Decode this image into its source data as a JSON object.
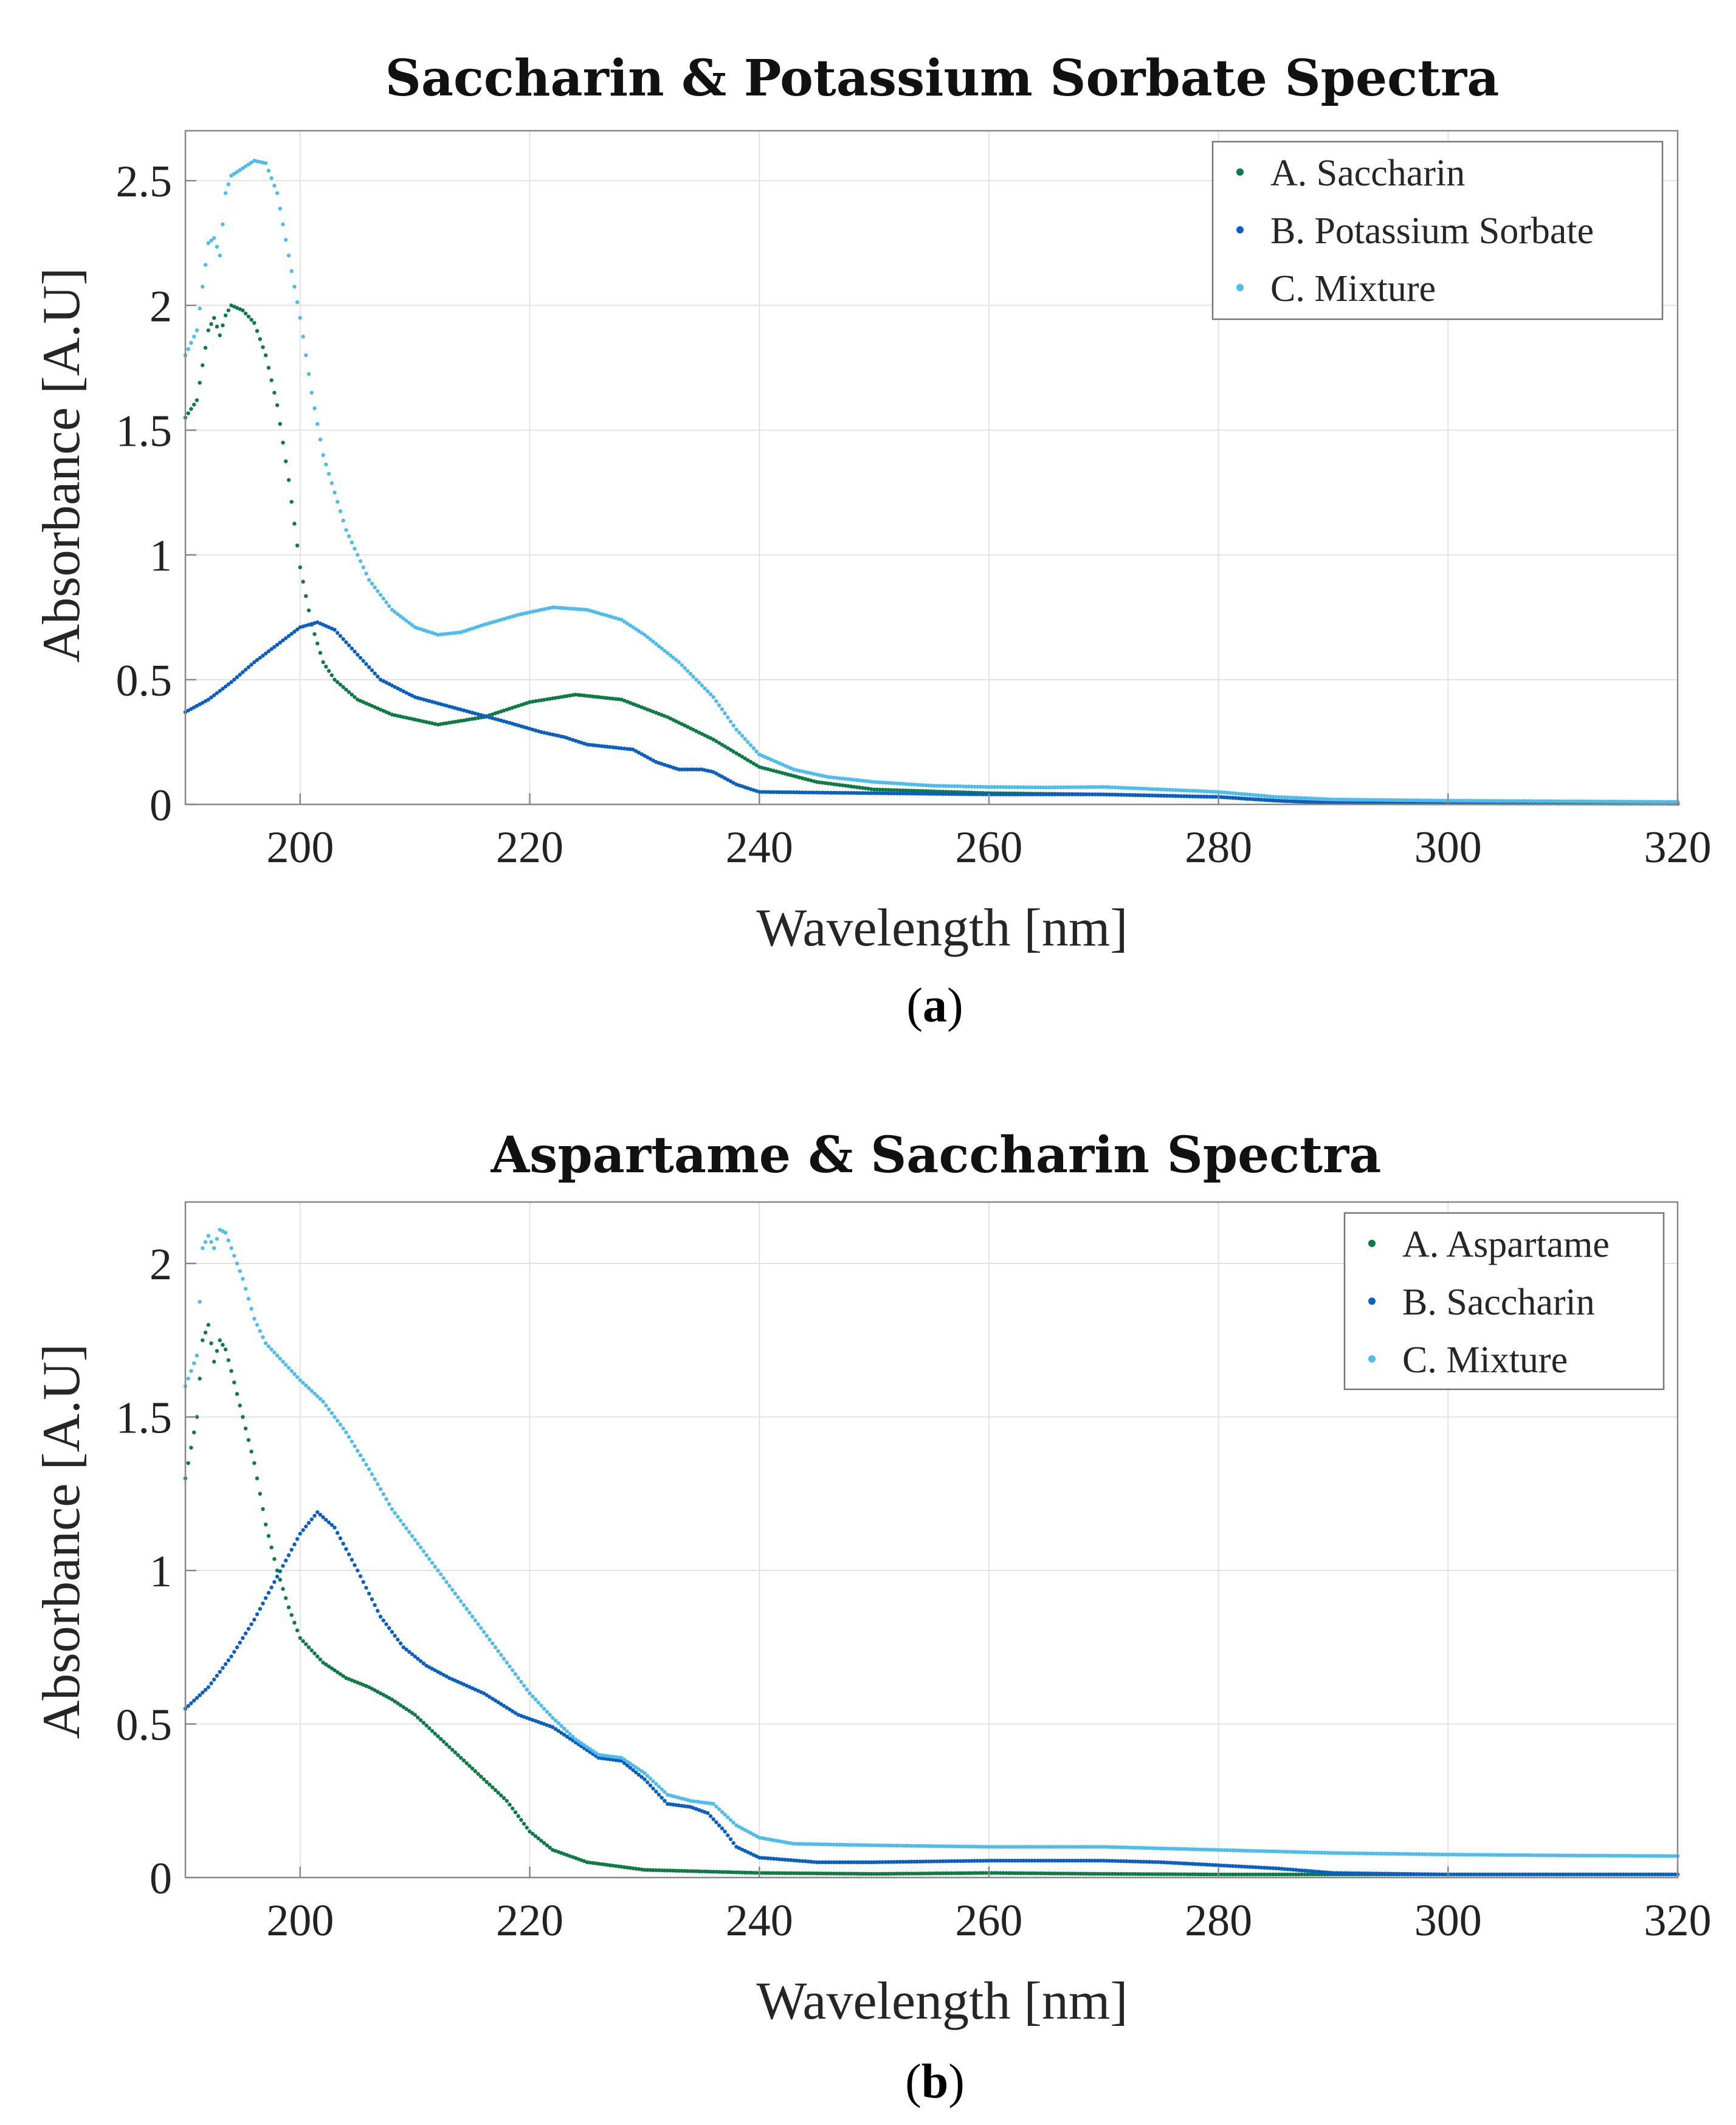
{
  "colors": {
    "green": "#0f7a45",
    "blue": "#0b5fc0",
    "lightblue": "#4fbcec",
    "grid": "#e3e3e3",
    "axis": "#888888"
  },
  "chart_data": [
    {
      "type": "scatter",
      "title": "Saccharin & Potassium Sorbate Spectra",
      "xlabel": "Wavelength [nm]",
      "ylabel": "Absorbance [A.U]",
      "xlim": [
        190,
        320
      ],
      "ylim": [
        0,
        2.7
      ],
      "xticks": [
        200,
        220,
        240,
        260,
        280,
        300,
        320
      ],
      "xtick_labels": [
        "200",
        "220",
        "240",
        "260",
        "280",
        "300",
        "320"
      ],
      "yticks": [
        0,
        0.5,
        1,
        1.5,
        2,
        2.5
      ],
      "ytick_labels": [
        "0",
        "0.5",
        "1",
        "1.5",
        "2",
        "2.5"
      ],
      "grid": true,
      "legend_position": "top-right",
      "caption_letter": "a",
      "series": [
        {
          "name": "A. Saccharin",
          "color_key": "green",
          "points": [
            [
              190,
              1.55
            ],
            [
              191,
              1.62
            ],
            [
              192,
              1.9
            ],
            [
              192.5,
              1.95
            ],
            [
              193,
              1.88
            ],
            [
              193.5,
              1.96
            ],
            [
              194,
              2.0
            ],
            [
              195,
              1.98
            ],
            [
              196,
              1.93
            ],
            [
              197,
              1.8
            ],
            [
              198,
              1.6
            ],
            [
              199,
              1.3
            ],
            [
              200,
              0.95
            ],
            [
              201,
              0.72
            ],
            [
              202,
              0.57
            ],
            [
              203,
              0.5
            ],
            [
              205,
              0.42
            ],
            [
              208,
              0.36
            ],
            [
              212,
              0.32
            ],
            [
              216,
              0.35
            ],
            [
              220,
              0.41
            ],
            [
              224,
              0.44
            ],
            [
              228,
              0.42
            ],
            [
              232,
              0.35
            ],
            [
              236,
              0.26
            ],
            [
              240,
              0.15
            ],
            [
              245,
              0.09
            ],
            [
              250,
              0.06
            ],
            [
              260,
              0.045
            ],
            [
              270,
              0.04
            ],
            [
              280,
              0.03
            ],
            [
              285,
              0.015
            ],
            [
              290,
              0.005
            ],
            [
              300,
              0.004
            ],
            [
              320,
              0.003
            ]
          ]
        },
        {
          "name": "B. Potassium Sorbate",
          "color_key": "blue",
          "points": [
            [
              190,
              0.37
            ],
            [
              192,
              0.42
            ],
            [
              194,
              0.49
            ],
            [
              196,
              0.57
            ],
            [
              198,
              0.64
            ],
            [
              200,
              0.71
            ],
            [
              201.5,
              0.73
            ],
            [
              203,
              0.7
            ],
            [
              205,
              0.6
            ],
            [
              207,
              0.5
            ],
            [
              210,
              0.43
            ],
            [
              214,
              0.38
            ],
            [
              218,
              0.33
            ],
            [
              221,
              0.29
            ],
            [
              223,
              0.27
            ],
            [
              225,
              0.24
            ],
            [
              227,
              0.23
            ],
            [
              229,
              0.22
            ],
            [
              231,
              0.17
            ],
            [
              233,
              0.14
            ],
            [
              235,
              0.14
            ],
            [
              236,
              0.13
            ],
            [
              238,
              0.08
            ],
            [
              240,
              0.05
            ],
            [
              250,
              0.045
            ],
            [
              260,
              0.04
            ],
            [
              270,
              0.04
            ],
            [
              280,
              0.03
            ],
            [
              285,
              0.015
            ],
            [
              290,
              0.007
            ],
            [
              300,
              0.005
            ],
            [
              320,
              0.004
            ]
          ]
        },
        {
          "name": "C. Mixture",
          "color_key": "lightblue",
          "points": [
            [
              190,
              1.8
            ],
            [
              191,
              1.9
            ],
            [
              192,
              2.25
            ],
            [
              192.5,
              2.27
            ],
            [
              193,
              2.2
            ],
            [
              193.5,
              2.45
            ],
            [
              194,
              2.52
            ],
            [
              195,
              2.55
            ],
            [
              196,
              2.58
            ],
            [
              197,
              2.57
            ],
            [
              198,
              2.45
            ],
            [
              199,
              2.2
            ],
            [
              200,
              1.95
            ],
            [
              201,
              1.65
            ],
            [
              202,
              1.4
            ],
            [
              204,
              1.1
            ],
            [
              206,
              0.9
            ],
            [
              208,
              0.78
            ],
            [
              210,
              0.71
            ],
            [
              212,
              0.68
            ],
            [
              214,
              0.69
            ],
            [
              216,
              0.72
            ],
            [
              219,
              0.76
            ],
            [
              222,
              0.79
            ],
            [
              225,
              0.78
            ],
            [
              228,
              0.74
            ],
            [
              230,
              0.68
            ],
            [
              233,
              0.57
            ],
            [
              236,
              0.43
            ],
            [
              238,
              0.3
            ],
            [
              240,
              0.2
            ],
            [
              243,
              0.14
            ],
            [
              246,
              0.11
            ],
            [
              250,
              0.09
            ],
            [
              255,
              0.075
            ],
            [
              260,
              0.07
            ],
            [
              265,
              0.068
            ],
            [
              270,
              0.07
            ],
            [
              275,
              0.06
            ],
            [
              280,
              0.05
            ],
            [
              285,
              0.03
            ],
            [
              290,
              0.02
            ],
            [
              300,
              0.015
            ],
            [
              320,
              0.01
            ]
          ]
        }
      ]
    },
    {
      "type": "scatter",
      "title": "Aspartame & Saccharin Spectra",
      "xlabel": "Wavelength [nm]",
      "ylabel": "Absorbance [A.U]",
      "xlim": [
        190,
        320
      ],
      "ylim": [
        0,
        2.2
      ],
      "xticks": [
        200,
        220,
        240,
        260,
        280,
        300,
        320
      ],
      "xtick_labels": [
        "200",
        "220",
        "240",
        "260",
        "280",
        "300",
        "320"
      ],
      "yticks": [
        0,
        0.5,
        1,
        1.5,
        2
      ],
      "ytick_labels": [
        "0",
        "0.5",
        "1",
        "1.5",
        "2"
      ],
      "grid": true,
      "legend_position": "top-right",
      "caption_letter": "b",
      "series": [
        {
          "name": "A. Aspartame",
          "color_key": "green",
          "points": [
            [
              190,
              1.3
            ],
            [
              191,
              1.5
            ],
            [
              191.5,
              1.75
            ],
            [
              192,
              1.8
            ],
            [
              192.5,
              1.68
            ],
            [
              193,
              1.75
            ],
            [
              193.5,
              1.72
            ],
            [
              194,
              1.65
            ],
            [
              195,
              1.5
            ],
            [
              196,
              1.35
            ],
            [
              197,
              1.15
            ],
            [
              198,
              1.0
            ],
            [
              199,
              0.88
            ],
            [
              200,
              0.78
            ],
            [
              202,
              0.7
            ],
            [
              204,
              0.65
            ],
            [
              206,
              0.62
            ],
            [
              208,
              0.58
            ],
            [
              210,
              0.53
            ],
            [
              212,
              0.46
            ],
            [
              214,
              0.39
            ],
            [
              216,
              0.32
            ],
            [
              218,
              0.25
            ],
            [
              220,
              0.15
            ],
            [
              222,
              0.09
            ],
            [
              225,
              0.05
            ],
            [
              230,
              0.025
            ],
            [
              240,
              0.015
            ],
            [
              250,
              0.012
            ],
            [
              260,
              0.015
            ],
            [
              270,
              0.012
            ],
            [
              280,
              0.01
            ],
            [
              300,
              0.01
            ],
            [
              320,
              0.01
            ]
          ]
        },
        {
          "name": "B. Saccharin",
          "color_key": "blue",
          "points": [
            [
              190,
              0.55
            ],
            [
              192,
              0.62
            ],
            [
              194,
              0.72
            ],
            [
              196,
              0.84
            ],
            [
              198,
              0.98
            ],
            [
              200,
              1.12
            ],
            [
              201.5,
              1.19
            ],
            [
              203,
              1.14
            ],
            [
              205,
              1.0
            ],
            [
              207,
              0.85
            ],
            [
              209,
              0.75
            ],
            [
              211,
              0.69
            ],
            [
              213,
              0.65
            ],
            [
              216,
              0.6
            ],
            [
              219,
              0.53
            ],
            [
              222,
              0.49
            ],
            [
              224,
              0.44
            ],
            [
              226,
              0.39
            ],
            [
              228,
              0.38
            ],
            [
              230,
              0.32
            ],
            [
              232,
              0.24
            ],
            [
              234,
              0.23
            ],
            [
              235.5,
              0.21
            ],
            [
              237,
              0.15
            ],
            [
              238,
              0.1
            ],
            [
              240,
              0.065
            ],
            [
              245,
              0.05
            ],
            [
              250,
              0.05
            ],
            [
              260,
              0.055
            ],
            [
              270,
              0.055
            ],
            [
              275,
              0.05
            ],
            [
              280,
              0.04
            ],
            [
              285,
              0.03
            ],
            [
              290,
              0.015
            ],
            [
              300,
              0.01
            ],
            [
              320,
              0.01
            ]
          ]
        },
        {
          "name": "C. Mixture",
          "color_key": "lightblue",
          "points": [
            [
              190,
              1.6
            ],
            [
              191,
              1.7
            ],
            [
              191.5,
              2.05
            ],
            [
              192,
              2.09
            ],
            [
              192.5,
              2.05
            ],
            [
              193,
              2.11
            ],
            [
              193.5,
              2.1
            ],
            [
              194,
              2.05
            ],
            [
              195,
              1.95
            ],
            [
              196,
              1.82
            ],
            [
              197,
              1.74
            ],
            [
              198,
              1.7
            ],
            [
              200,
              1.62
            ],
            [
              202,
              1.55
            ],
            [
              204,
              1.45
            ],
            [
              206,
              1.33
            ],
            [
              208,
              1.2
            ],
            [
              210,
              1.1
            ],
            [
              212,
              1.0
            ],
            [
              214,
              0.9
            ],
            [
              216,
              0.8
            ],
            [
              218,
              0.7
            ],
            [
              220,
              0.6
            ],
            [
              222,
              0.52
            ],
            [
              224,
              0.45
            ],
            [
              226,
              0.4
            ],
            [
              228,
              0.39
            ],
            [
              230,
              0.34
            ],
            [
              232,
              0.27
            ],
            [
              234,
              0.25
            ],
            [
              236,
              0.24
            ],
            [
              238,
              0.17
            ],
            [
              240,
              0.13
            ],
            [
              243,
              0.11
            ],
            [
              250,
              0.105
            ],
            [
              260,
              0.1
            ],
            [
              270,
              0.1
            ],
            [
              280,
              0.09
            ],
            [
              290,
              0.08
            ],
            [
              300,
              0.075
            ],
            [
              310,
              0.072
            ],
            [
              320,
              0.07
            ]
          ]
        }
      ]
    }
  ]
}
